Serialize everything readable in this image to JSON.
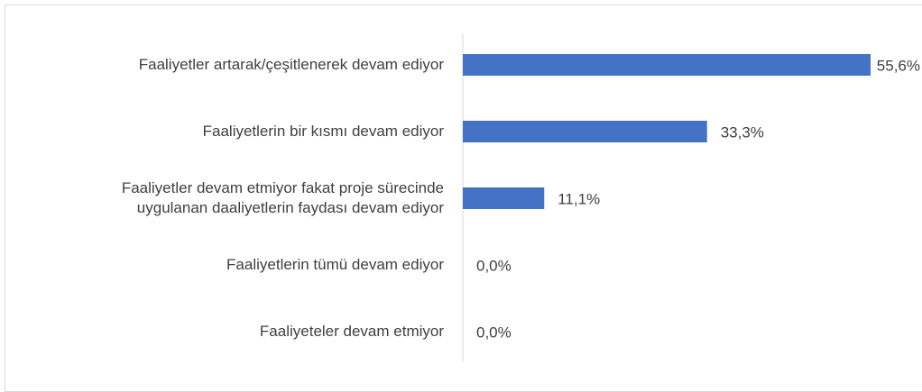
{
  "chart_data": {
    "type": "bar",
    "orientation": "horizontal",
    "categories": [
      "Faaliyetler artarak/çeşitlenerek devam ediyor",
      "Faaliyetlerin bir kısmı devam ediyor",
      "Faaliyetler devam etmiyor fakat proje sürecinde\nuygulanan daaliyetlerin faydası devam ediyor",
      "Faaliyetlerin tümü devam ediyor",
      "Faaliyeteler devam etmiyor"
    ],
    "values": [
      55.6,
      33.3,
      11.1,
      0,
      0
    ],
    "value_labels": [
      "55,6%",
      "33,3%",
      "11,1%",
      "0,0%",
      "0,0%"
    ],
    "color": "#4472c4",
    "xlim": [
      0,
      60
    ]
  }
}
